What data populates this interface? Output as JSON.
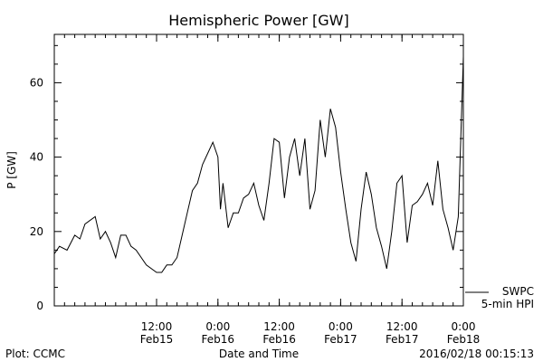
{
  "chart_data": {
    "type": "line",
    "title": "Hemispheric Power [GW]",
    "xlabel": "Date and Time",
    "ylabel": "P [GW]",
    "xlim": [
      "2016-02-14 16:00",
      "2016-02-18 00:00"
    ],
    "ylim": [
      0,
      73
    ],
    "grid": false,
    "legend_position": "bottom-right",
    "line_color": "#000000",
    "x_ticks": [
      {
        "time": "2016-02-15 12:00",
        "label": "12:00",
        "sublabel": "Feb15"
      },
      {
        "time": "2016-02-16 00:00",
        "label": "0:00",
        "sublabel": "Feb16"
      },
      {
        "time": "2016-02-16 12:00",
        "label": "12:00",
        "sublabel": "Feb16"
      },
      {
        "time": "2016-02-17 00:00",
        "label": "0:00",
        "sublabel": "Feb17"
      },
      {
        "time": "2016-02-17 12:00",
        "label": "12:00",
        "sublabel": "Feb17"
      },
      {
        "time": "2016-02-18 00:00",
        "label": "0:00",
        "sublabel": "Feb18"
      }
    ],
    "y_ticks": [
      0,
      20,
      40,
      60
    ],
    "series": [
      {
        "name": "SWPC 5-min HPI",
        "points": [
          [
            "2016-02-14 16:00",
            14
          ],
          [
            "2016-02-14 17:00",
            16
          ],
          [
            "2016-02-14 18:30",
            15
          ],
          [
            "2016-02-14 20:00",
            19
          ],
          [
            "2016-02-14 21:00",
            18
          ],
          [
            "2016-02-14 22:00",
            22
          ],
          [
            "2016-02-15 00:00",
            24
          ],
          [
            "2016-02-15 01:00",
            18
          ],
          [
            "2016-02-15 02:00",
            20
          ],
          [
            "2016-02-15 03:00",
            17
          ],
          [
            "2016-02-15 04:00",
            13
          ],
          [
            "2016-02-15 05:00",
            19
          ],
          [
            "2016-02-15 06:00",
            19
          ],
          [
            "2016-02-15 07:00",
            16
          ],
          [
            "2016-02-15 08:00",
            15
          ],
          [
            "2016-02-15 10:00",
            11
          ],
          [
            "2016-02-15 12:00",
            9
          ],
          [
            "2016-02-15 13:00",
            9
          ],
          [
            "2016-02-15 14:00",
            11
          ],
          [
            "2016-02-15 15:00",
            11
          ],
          [
            "2016-02-15 16:00",
            13
          ],
          [
            "2016-02-15 18:00",
            25
          ],
          [
            "2016-02-15 19:00",
            31
          ],
          [
            "2016-02-15 20:00",
            33
          ],
          [
            "2016-02-15 21:00",
            38
          ],
          [
            "2016-02-15 22:00",
            41
          ],
          [
            "2016-02-15 23:00",
            44
          ],
          [
            "2016-02-16 00:00",
            40
          ],
          [
            "2016-02-16 00:30",
            26
          ],
          [
            "2016-02-16 01:00",
            33
          ],
          [
            "2016-02-16 02:00",
            21
          ],
          [
            "2016-02-16 03:00",
            25
          ],
          [
            "2016-02-16 04:00",
            25
          ],
          [
            "2016-02-16 05:00",
            29
          ],
          [
            "2016-02-16 06:00",
            30
          ],
          [
            "2016-02-16 07:00",
            33
          ],
          [
            "2016-02-16 08:00",
            27
          ],
          [
            "2016-02-16 09:00",
            23
          ],
          [
            "2016-02-16 10:00",
            33
          ],
          [
            "2016-02-16 11:00",
            45
          ],
          [
            "2016-02-16 12:00",
            44
          ],
          [
            "2016-02-16 13:00",
            29
          ],
          [
            "2016-02-16 14:00",
            40
          ],
          [
            "2016-02-16 15:00",
            45
          ],
          [
            "2016-02-16 16:00",
            35
          ],
          [
            "2016-02-16 17:00",
            45
          ],
          [
            "2016-02-16 18:00",
            26
          ],
          [
            "2016-02-16 19:00",
            31
          ],
          [
            "2016-02-16 20:00",
            50
          ],
          [
            "2016-02-16 21:00",
            40
          ],
          [
            "2016-02-16 22:00",
            53
          ],
          [
            "2016-02-16 23:00",
            48
          ],
          [
            "2016-02-17 00:00",
            36
          ],
          [
            "2016-02-17 01:00",
            26
          ],
          [
            "2016-02-17 02:00",
            17
          ],
          [
            "2016-02-17 03:00",
            12
          ],
          [
            "2016-02-17 04:00",
            26
          ],
          [
            "2016-02-17 05:00",
            36
          ],
          [
            "2016-02-17 06:00",
            30
          ],
          [
            "2016-02-17 07:00",
            21
          ],
          [
            "2016-02-17 08:00",
            16
          ],
          [
            "2016-02-17 09:00",
            10
          ],
          [
            "2016-02-17 10:00",
            20
          ],
          [
            "2016-02-17 11:00",
            33
          ],
          [
            "2016-02-17 12:00",
            35
          ],
          [
            "2016-02-17 13:00",
            17
          ],
          [
            "2016-02-17 14:00",
            27
          ],
          [
            "2016-02-17 15:00",
            28
          ],
          [
            "2016-02-17 16:00",
            30
          ],
          [
            "2016-02-17 17:00",
            33
          ],
          [
            "2016-02-17 18:00",
            27
          ],
          [
            "2016-02-17 19:00",
            39
          ],
          [
            "2016-02-17 20:00",
            26
          ],
          [
            "2016-02-17 21:00",
            21
          ],
          [
            "2016-02-17 22:00",
            15
          ],
          [
            "2016-02-17 23:00",
            24
          ],
          [
            "2016-02-18 00:00",
            67
          ]
        ]
      }
    ],
    "legend": [
      "SWPC",
      "5-min HPI"
    ]
  },
  "footer": {
    "left": "Plot: CCMC",
    "right": "2016/02/18 00:15:13"
  }
}
